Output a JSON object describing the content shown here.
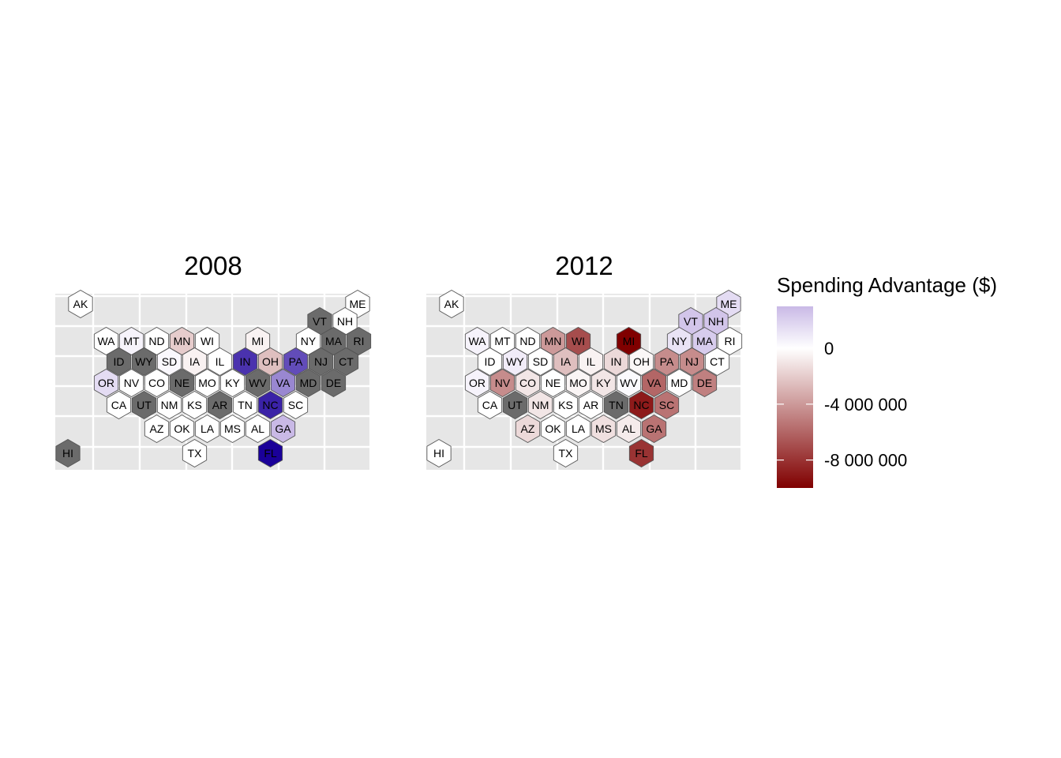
{
  "chart_data": {
    "type": "heatmap",
    "subtype": "hexagonal tile grid map",
    "panel_titles": [
      "2008",
      "2012"
    ],
    "legend": {
      "title": "Spending Advantage ($)",
      "tick_labels": [
        "0",
        "-4 000 000",
        "-8 000 000"
      ],
      "tick_values": [
        0,
        -4000000,
        -8000000
      ],
      "range": [
        -10000000,
        3000000
      ],
      "colors": {
        "high": "#c9b9e6",
        "mid": "#ffffff",
        "low": "#800000",
        "missing": "#6b6b6b"
      },
      "placement": "right"
    },
    "grid": true,
    "panels": [
      {
        "title": "2008",
        "states": [
          {
            "abbr": "AK",
            "value": 0
          },
          {
            "abbr": "ME",
            "value": 0
          },
          {
            "abbr": "VT",
            "value": null
          },
          {
            "abbr": "NH",
            "value": 0
          },
          {
            "abbr": "WA",
            "value": 0
          },
          {
            "abbr": "MT",
            "value": 500000
          },
          {
            "abbr": "ND",
            "value": 0
          },
          {
            "abbr": "MN",
            "value": -2000000
          },
          {
            "abbr": "WI",
            "value": 0
          },
          {
            "abbr": "MI",
            "value": -500000
          },
          {
            "abbr": "NY",
            "value": 0
          },
          {
            "abbr": "MA",
            "value": null
          },
          {
            "abbr": "RI",
            "value": null
          },
          {
            "abbr": "ID",
            "value": null
          },
          {
            "abbr": "WY",
            "value": null
          },
          {
            "abbr": "SD",
            "value": 300000
          },
          {
            "abbr": "IA",
            "value": -500000
          },
          {
            "abbr": "IL",
            "value": 0
          },
          {
            "abbr": "IN",
            "value": 11000000
          },
          {
            "abbr": "OH",
            "value": -2500000
          },
          {
            "abbr": "PA",
            "value": 9500000
          },
          {
            "abbr": "NJ",
            "value": null
          },
          {
            "abbr": "CT",
            "value": null
          },
          {
            "abbr": "OR",
            "value": 1500000
          },
          {
            "abbr": "NV",
            "value": 0
          },
          {
            "abbr": "CO",
            "value": 0
          },
          {
            "abbr": "NE",
            "value": null
          },
          {
            "abbr": "MO",
            "value": 0
          },
          {
            "abbr": "KY",
            "value": 0
          },
          {
            "abbr": "WV",
            "value": null
          },
          {
            "abbr": "VA",
            "value": 6000000
          },
          {
            "abbr": "MD",
            "value": null
          },
          {
            "abbr": "DE",
            "value": null
          },
          {
            "abbr": "CA",
            "value": 0
          },
          {
            "abbr": "UT",
            "value": null
          },
          {
            "abbr": "NM",
            "value": 0
          },
          {
            "abbr": "KS",
            "value": 0
          },
          {
            "abbr": "AR",
            "value": null
          },
          {
            "abbr": "TN",
            "value": 0
          },
          {
            "abbr": "NC",
            "value": 12000000
          },
          {
            "abbr": "SC",
            "value": 0
          },
          {
            "abbr": "AZ",
            "value": 0
          },
          {
            "abbr": "OK",
            "value": 0
          },
          {
            "abbr": "LA",
            "value": 0
          },
          {
            "abbr": "MS",
            "value": 0
          },
          {
            "abbr": "AL",
            "value": 0
          },
          {
            "abbr": "GA",
            "value": 3000000
          },
          {
            "abbr": "HI",
            "value": null
          },
          {
            "abbr": "TX",
            "value": 0
          },
          {
            "abbr": "FL",
            "value": 14000000
          }
        ]
      },
      {
        "title": "2012",
        "states": [
          {
            "abbr": "AK",
            "value": 0
          },
          {
            "abbr": "ME",
            "value": 1500000
          },
          {
            "abbr": "VT",
            "value": 2500000
          },
          {
            "abbr": "NH",
            "value": 2500000
          },
          {
            "abbr": "WA",
            "value": 500000
          },
          {
            "abbr": "MT",
            "value": 0
          },
          {
            "abbr": "ND",
            "value": 0
          },
          {
            "abbr": "MN",
            "value": -4000000
          },
          {
            "abbr": "WI",
            "value": -7000000
          },
          {
            "abbr": "MI",
            "value": -10000000
          },
          {
            "abbr": "NY",
            "value": 1200000
          },
          {
            "abbr": "MA",
            "value": 2200000
          },
          {
            "abbr": "RI",
            "value": 0
          },
          {
            "abbr": "ID",
            "value": 0
          },
          {
            "abbr": "WY",
            "value": 800000
          },
          {
            "abbr": "SD",
            "value": 0
          },
          {
            "abbr": "IA",
            "value": -2500000
          },
          {
            "abbr": "IL",
            "value": -500000
          },
          {
            "abbr": "IN",
            "value": -1500000
          },
          {
            "abbr": "OH",
            "value": -300000
          },
          {
            "abbr": "PA",
            "value": -4500000
          },
          {
            "abbr": "NJ",
            "value": -4500000
          },
          {
            "abbr": "CT",
            "value": 0
          },
          {
            "abbr": "OR",
            "value": 500000
          },
          {
            "abbr": "NV",
            "value": -4500000
          },
          {
            "abbr": "CO",
            "value": -1000000
          },
          {
            "abbr": "NE",
            "value": 0
          },
          {
            "abbr": "MO",
            "value": -400000
          },
          {
            "abbr": "KY",
            "value": -1000000
          },
          {
            "abbr": "WV",
            "value": 200000
          },
          {
            "abbr": "VA",
            "value": -6000000
          },
          {
            "abbr": "MD",
            "value": 0
          },
          {
            "abbr": "DE",
            "value": -5000000
          },
          {
            "abbr": "CA",
            "value": 0
          },
          {
            "abbr": "UT",
            "value": null
          },
          {
            "abbr": "NM",
            "value": -1000000
          },
          {
            "abbr": "KS",
            "value": 0
          },
          {
            "abbr": "AR",
            "value": 0
          },
          {
            "abbr": "TN",
            "value": null
          },
          {
            "abbr": "NC",
            "value": -9000000
          },
          {
            "abbr": "SC",
            "value": -5500000
          },
          {
            "abbr": "AZ",
            "value": -1500000
          },
          {
            "abbr": "OK",
            "value": 0
          },
          {
            "abbr": "LA",
            "value": 0
          },
          {
            "abbr": "MS",
            "value": -1200000
          },
          {
            "abbr": "AL",
            "value": -800000
          },
          {
            "abbr": "GA",
            "value": -5500000
          },
          {
            "abbr": "HI",
            "value": 0
          },
          {
            "abbr": "TX",
            "value": 0
          },
          {
            "abbr": "FL",
            "value": -8000000
          }
        ]
      }
    ]
  }
}
